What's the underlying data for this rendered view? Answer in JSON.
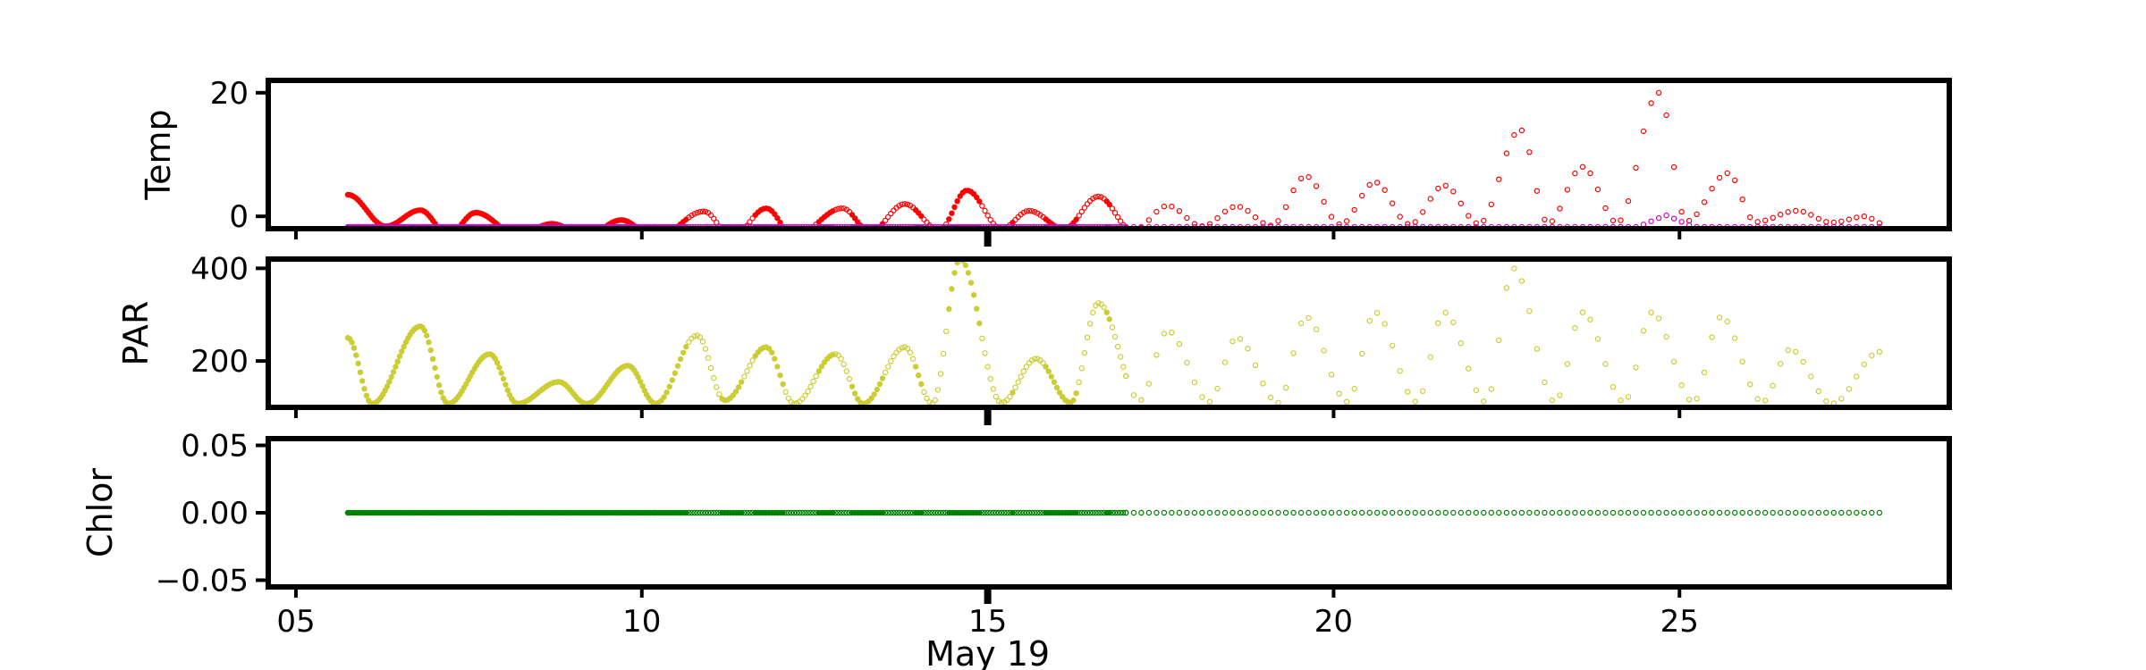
{
  "chart_data": [
    {
      "type": "scatter",
      "ylabel": "Temp",
      "ylim": [
        -2,
        22
      ],
      "yticks": [
        0,
        20
      ],
      "series": [
        {
          "name": "temp_upper",
          "color": "#ff0000",
          "style": "dense-then-hollow",
          "peaks": [
            [
              5.75,
              3.5
            ],
            [
              6.8,
              1.0
            ],
            [
              7.6,
              0.6
            ],
            [
              8.7,
              -1.2
            ],
            [
              9.7,
              -0.6
            ],
            [
              10.9,
              0.8
            ],
            [
              11.8,
              1.3
            ],
            [
              12.9,
              1.3
            ],
            [
              13.8,
              2.0
            ],
            [
              14.7,
              4.2
            ],
            [
              15.6,
              0.9
            ],
            [
              16.6,
              3.2
            ],
            [
              17.6,
              1.7
            ],
            [
              18.6,
              1.6
            ],
            [
              19.6,
              6.5
            ],
            [
              20.6,
              5.5
            ],
            [
              21.6,
              5.0
            ],
            [
              22.7,
              14.0
            ],
            [
              23.6,
              8.0
            ],
            [
              24.7,
              20.0
            ],
            [
              25.7,
              7.0
            ],
            [
              26.7,
              0.9
            ],
            [
              27.7,
              0.0
            ]
          ],
          "troughs": [
            [
              6.3,
              -1.6
            ],
            [
              7.2,
              -3.0
            ],
            [
              8.2,
              -3.0
            ],
            [
              9.2,
              -3.2
            ],
            [
              10.2,
              -3.5
            ],
            [
              11.3,
              -3.4
            ],
            [
              12.2,
              -3.3
            ],
            [
              13.3,
              -2.5
            ],
            [
              14.3,
              -2.2
            ],
            [
              15.2,
              -2.0
            ],
            [
              16.1,
              -2.0
            ],
            [
              17.1,
              -2.4
            ],
            [
              18.1,
              -1.6
            ],
            [
              19.1,
              -1.5
            ],
            [
              20.1,
              -1.3
            ],
            [
              21.1,
              -1.3
            ],
            [
              22.1,
              -1.2
            ],
            [
              23.1,
              -1.1
            ],
            [
              24.1,
              -1.0
            ],
            [
              25.1,
              -0.8
            ],
            [
              26.1,
              -0.9
            ],
            [
              27.2,
              -1.0
            ],
            [
              27.9,
              -1.1
            ]
          ]
        },
        {
          "name": "temp_lower",
          "color": "#cc00cc",
          "baseline": -1.7,
          "bump_day": 24.8,
          "bump_value": 0.2
        }
      ]
    },
    {
      "type": "scatter",
      "ylabel": "PAR",
      "ylim": [
        100,
        420
      ],
      "yticks": [
        200,
        400
      ],
      "series": [
        {
          "name": "par",
          "color": "#cccc33",
          "style": "dense-then-hollow",
          "peaks": [
            [
              5.75,
              250
            ],
            [
              6.8,
              275
            ],
            [
              7.8,
              215
            ],
            [
              8.8,
              155
            ],
            [
              9.8,
              190
            ],
            [
              10.8,
              255
            ],
            [
              11.8,
              230
            ],
            [
              12.8,
              215
            ],
            [
              13.8,
              230
            ],
            [
              14.6,
              420
            ],
            [
              15.7,
              205
            ],
            [
              16.6,
              325
            ],
            [
              17.6,
              265
            ],
            [
              18.6,
              250
            ],
            [
              19.6,
              295
            ],
            [
              20.6,
              305
            ],
            [
              21.6,
              305
            ],
            [
              22.6,
              400
            ],
            [
              23.6,
              305
            ],
            [
              24.6,
              305
            ],
            [
              25.6,
              295
            ],
            [
              26.6,
              225
            ],
            [
              27.9,
              220
            ]
          ],
          "troughs": [
            [
              6.1,
              108
            ],
            [
              7.2,
              108
            ],
            [
              8.2,
              108
            ],
            [
              9.2,
              108
            ],
            [
              10.2,
              108
            ],
            [
              11.2,
              115
            ],
            [
              12.2,
              108
            ],
            [
              13.2,
              108
            ],
            [
              14.2,
              108
            ],
            [
              15.2,
              110
            ],
            [
              16.2,
              110
            ],
            [
              17.2,
              115
            ],
            [
              18.2,
              112
            ],
            [
              19.2,
              110
            ],
            [
              20.2,
              112
            ],
            [
              21.2,
              112
            ],
            [
              22.2,
              112
            ],
            [
              23.2,
              112
            ],
            [
              24.2,
              112
            ],
            [
              25.2,
              112
            ],
            [
              26.2,
              112
            ],
            [
              27.2,
              108
            ]
          ]
        }
      ]
    },
    {
      "type": "scatter",
      "ylabel": "Chlor",
      "ylim": [
        -0.055,
        0.055
      ],
      "yticks": [
        0.05,
        0.0,
        -0.05
      ],
      "ytick_labels": [
        "0.05",
        "0.00",
        "−0.05"
      ],
      "series": [
        {
          "name": "chlor",
          "color": "#008000",
          "style": "dense-then-hollow",
          "constant": 0.0
        }
      ]
    }
  ],
  "xaxis": {
    "range": [
      4.6,
      28.9
    ],
    "ticks": [
      5,
      10,
      15,
      20,
      25
    ],
    "tick_labels": [
      "05",
      "10",
      "15",
      "20",
      "25"
    ],
    "label": "May 19",
    "data_start": 5.75,
    "data_end": 27.95,
    "dense_end": 10.2,
    "gappy_end": 17.0
  }
}
